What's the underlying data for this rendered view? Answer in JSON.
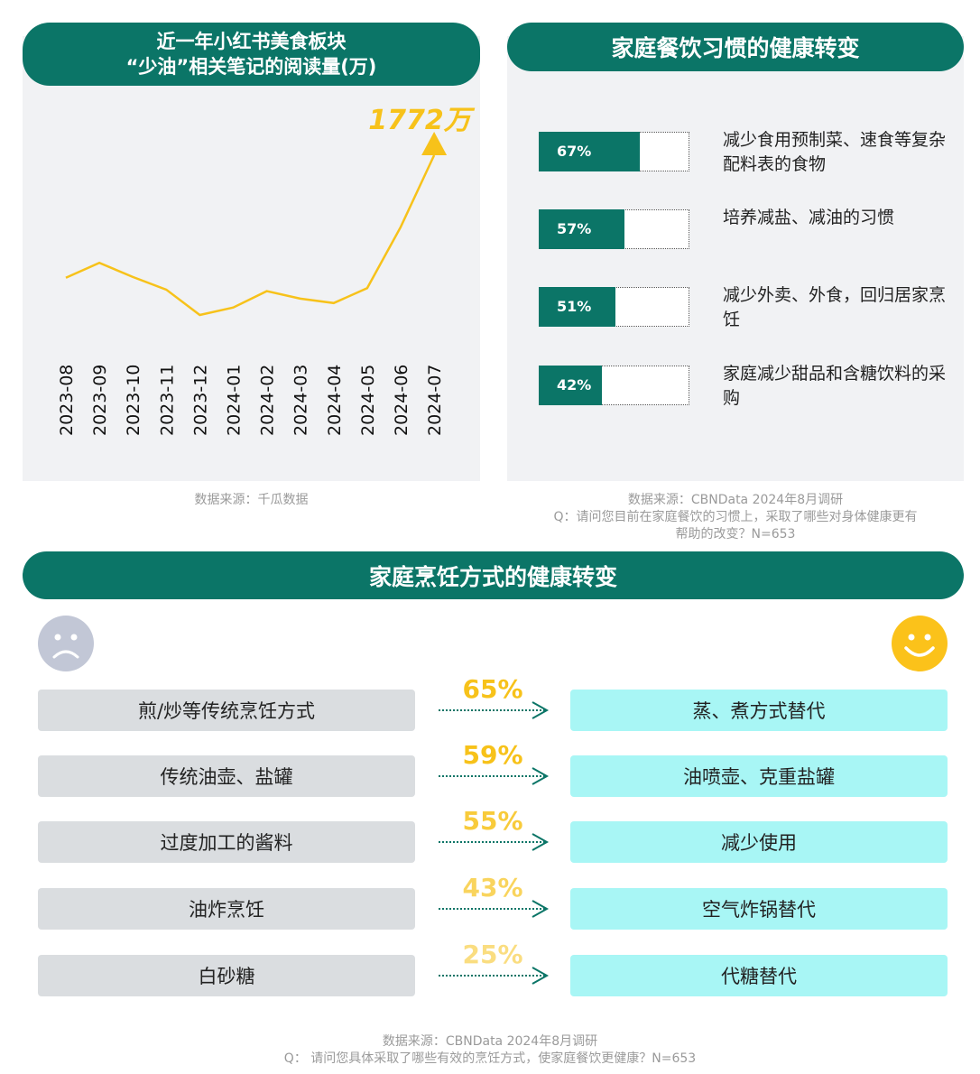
{
  "left_panel": {
    "title_line1": "近一年小红书美食板块",
    "title_line2": "“少油”相关笔记的阅读量(万)",
    "peak_label": "1772万",
    "source": "数据来源：千瓜数据"
  },
  "right_panel": {
    "title": "家庭餐饮习惯的健康转变",
    "items": [
      {
        "pct": "67%",
        "value": 0.67,
        "label": "减少食用预制菜、速食等复杂配料表的食物"
      },
      {
        "pct": "57%",
        "value": 0.57,
        "label": "培养减盐、减油的习惯"
      },
      {
        "pct": "51%",
        "value": 0.51,
        "label": "减少外卖、外食，回归居家烹饪"
      },
      {
        "pct": "42%",
        "value": 0.42,
        "label": "家庭减少甜品和含糖饮料的采购"
      }
    ],
    "source_line1": "数据来源：CBNData 2024年8月调研",
    "source_line2": "Q：请问您目前在家庭餐饮的习惯上，采取了哪些对身体健康更有",
    "source_line3": "帮助的改变？N=653"
  },
  "bottom_panel": {
    "title": "家庭烹饪方式的健康转变",
    "rows": [
      {
        "from": "煎/炒等传统烹饪方式",
        "pct": "65%",
        "to": "蒸、煮方式替代"
      },
      {
        "from": "传统油壶、盐罐",
        "pct": "59%",
        "to": "油喷壶、克重盐罐"
      },
      {
        "from": "过度加工的酱料",
        "pct": "55%",
        "to": "减少使用"
      },
      {
        "from": "油炸烹饪",
        "pct": "43%",
        "to": "空气炸锅替代"
      },
      {
        "from": "白砂糖",
        "pct": "25%",
        "to": "代糖替代"
      }
    ],
    "source_line1": "数据来源：CBNData 2024年8月调研",
    "source_line2": "Q：  请问您具体采取了哪些有效的烹饪方式，使家庭餐饮更健康？N=653"
  },
  "colors": {
    "teal": "#0b7567",
    "line": "#f7c21a",
    "panel_bg": "#f1f2f4",
    "left_box": "#dadde0",
    "right_box": "#a8f6f5"
  },
  "chart_data": [
    {
      "type": "line",
      "title": "近一年小红书美食板块“少油”相关笔记的阅读量(万)",
      "x": [
        "2023-08",
        "2023-09",
        "2023-10",
        "2023-11",
        "2023-12",
        "2024-01",
        "2024-02",
        "2024-03",
        "2024-04",
        "2024-05",
        "2024-06",
        "2024-07"
      ],
      "y": [
        950,
        1050,
        955,
        870,
        700,
        750,
        860,
        810,
        780,
        880,
        1290,
        1772
      ],
      "ylim": [
        0,
        2200
      ],
      "annotations": [
        "1772万"
      ],
      "grid": false
    },
    {
      "type": "bar",
      "title": "家庭餐饮习惯的健康转变",
      "categories": [
        "减少食用预制菜、速食等复杂配料表的食物",
        "培养减盐、减油的习惯",
        "减少外卖、外食，回归居家烹饪",
        "家庭减少甜品和含糖饮料的采购"
      ],
      "values": [
        67,
        57,
        51,
        42
      ],
      "ylim": [
        0,
        100
      ]
    },
    {
      "type": "table",
      "title": "家庭烹饪方式的健康转变",
      "categories": [
        "煎/炒等传统烹饪方式",
        "传统油壶、盐罐",
        "过度加工的酱料",
        "油炸烹饪",
        "白砂糖"
      ],
      "values": [
        65,
        59,
        55,
        43,
        25
      ]
    }
  ]
}
